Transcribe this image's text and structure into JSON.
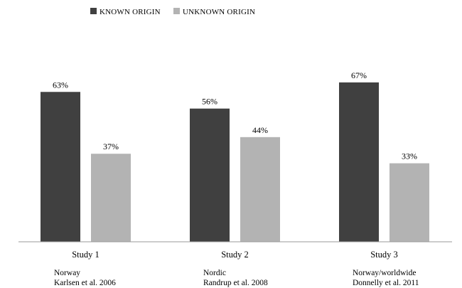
{
  "chart_data": {
    "type": "bar",
    "categories": [
      "Study 1",
      "Study 2",
      "Study 3"
    ],
    "category_notes": [
      [
        "Norway",
        "Karlsen et al. 2006"
      ],
      [
        "Nordic",
        "Randrup et al. 2008"
      ],
      [
        "Norway/worldwide",
        "Donnelly et al. 2011"
      ]
    ],
    "series": [
      {
        "name": "KNOWN ORIGIN",
        "values": [
          63,
          56,
          67
        ],
        "labels": [
          "63%",
          "56%",
          "67%"
        ],
        "color": "#404040"
      },
      {
        "name": "UNKNOWN ORIGIN",
        "values": [
          37,
          44,
          33
        ],
        "labels": [
          "37%",
          "44%",
          "33%"
        ],
        "color": "#b3b3b3"
      }
    ],
    "ylim": [
      0,
      80
    ],
    "grid": false,
    "legend_position": "top-left"
  }
}
